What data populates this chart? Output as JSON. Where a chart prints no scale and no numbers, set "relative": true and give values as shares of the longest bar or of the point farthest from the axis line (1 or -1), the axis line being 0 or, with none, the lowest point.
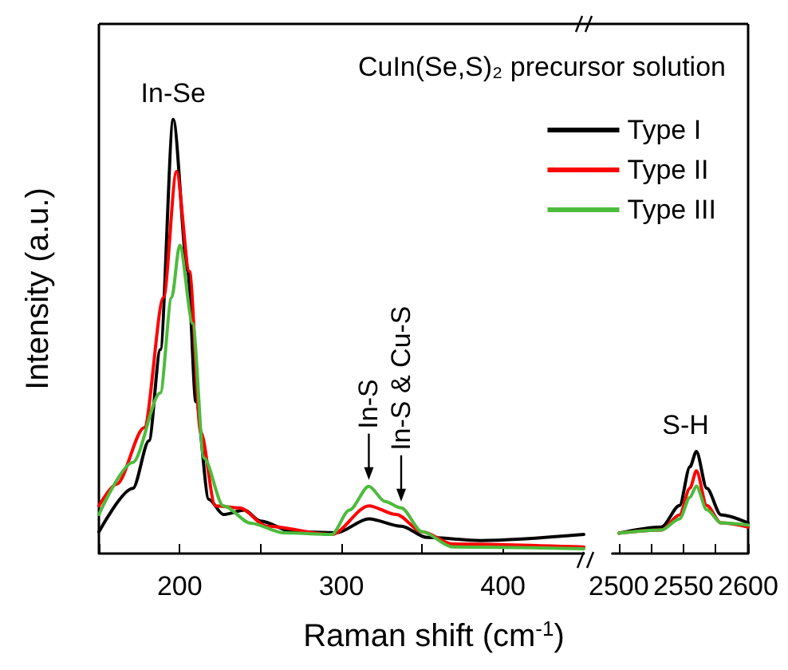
{
  "chart_data": [
    {
      "type": "line",
      "relative": true,
      "xlabel": "Raman shift (cm$^{-1}$)",
      "ylabel": "Intensity (a.u.)",
      "legend_title": "CuIn(Se,S)₂ precursor solution",
      "legend": "top right",
      "marker": "none",
      "line_style": "solid",
      "tick_labels": "x",
      "xlim": [
        150,
        450
      ],
      "xticks": [
        {
          "value": 150,
          "label": null
        },
        200,
        {
          "value": 250,
          "label": null
        },
        300,
        {
          "value": 350,
          "label": null
        },
        400
      ],
      "annotations": [
        {
          "text": "In-Se",
          "x": 196,
          "y": 1.0
        },
        {
          "text": "In-S",
          "x": 317,
          "y": 0.155
        },
        {
          "text": "In-S & Cu-S",
          "x": 337,
          "y": 0.105
        }
      ],
      "series": [
        {
          "name": "Type I",
          "color": "#000000",
          "x": [
            150,
            171,
            181,
            188,
            196,
            205,
            210,
            218,
            227,
            240,
            250,
            270,
            297,
            317,
            337,
            353,
            386,
            450
          ],
          "values": [
            0.05,
            0.15,
            0.26,
            0.47,
            1.0,
            0.65,
            0.35,
            0.125,
            0.09,
            0.1,
            0.075,
            0.05,
            0.048,
            0.08,
            0.063,
            0.037,
            0.03,
            0.044
          ]
        },
        {
          "name": "Type II",
          "color": "#ff0000",
          "x": [
            150,
            161,
            178,
            190,
            198,
            206,
            213,
            222,
            237,
            254,
            294,
            317,
            334,
            350,
            369,
            450
          ],
          "values": [
            0.11,
            0.16,
            0.29,
            0.59,
            0.88,
            0.65,
            0.28,
            0.11,
            0.105,
            0.063,
            0.044,
            0.11,
            0.09,
            0.05,
            0.022,
            0.015
          ]
        },
        {
          "name": "Type III",
          "color": "#4cbb3c",
          "x": [
            150,
            171,
            188,
            195,
            200,
            208,
            215,
            227,
            244,
            264,
            294,
            305,
            317,
            327,
            337,
            350,
            369,
            450
          ],
          "values": [
            0.09,
            0.21,
            0.37,
            0.59,
            0.71,
            0.53,
            0.22,
            0.11,
            0.07,
            0.048,
            0.044,
            0.1,
            0.155,
            0.12,
            0.105,
            0.05,
            0.015,
            0.011
          ]
        }
      ]
    },
    {
      "type": "line",
      "relative": true,
      "marker": "none",
      "line_style": "solid",
      "tick_labels": "x",
      "xlim": [
        2495,
        2600
      ],
      "xticks": [
        2500,
        {
          "value": 2525,
          "label": null
        },
        2550,
        {
          "value": 2575,
          "label": null
        },
        2600
      ],
      "annotations": [
        "S-H"
      ],
      "series": [
        {
          "color": "#000000",
          "x": [
            2500,
            2533,
            2547,
            2555,
            2560,
            2568,
            2579,
            2600
          ],
          "values": [
            0.2,
            0.26,
            0.47,
            0.85,
            1.0,
            0.64,
            0.38,
            0.3
          ]
        },
        {
          "color": "#ff0000",
          "x": [
            2500,
            2533,
            2547,
            2555,
            2560,
            2568,
            2579,
            2600
          ],
          "values": [
            0.2,
            0.23,
            0.38,
            0.64,
            0.81,
            0.47,
            0.3,
            0.26
          ]
        },
        {
          "color": "#4cbb3c",
          "x": [
            2500,
            2533,
            2547,
            2555,
            2560,
            2568,
            2579,
            2600
          ],
          "values": [
            0.2,
            0.23,
            0.34,
            0.55,
            0.66,
            0.43,
            0.3,
            0.28
          ]
        }
      ]
    }
  ]
}
